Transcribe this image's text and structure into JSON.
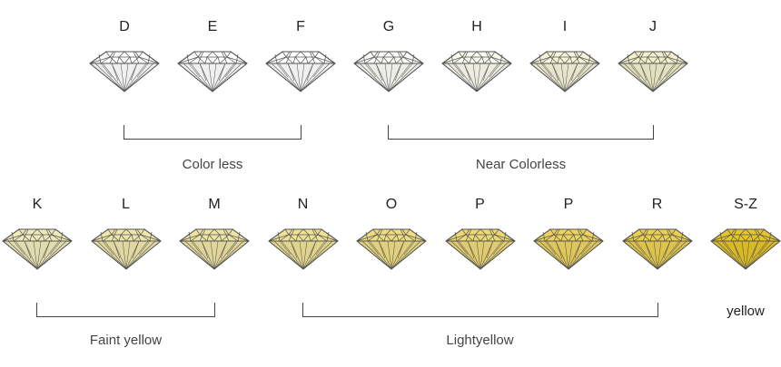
{
  "diamond_scale": {
    "rows": [
      {
        "grades": [
          {
            "label": "D",
            "color": "#ffffff",
            "color_name": "white"
          },
          {
            "label": "E",
            "color": "#ffffff",
            "color_name": "white"
          },
          {
            "label": "F",
            "color": "#ffffff",
            "color_name": "white"
          },
          {
            "label": "G",
            "color": "#fcfcf6",
            "color_name": "near-white"
          },
          {
            "label": "H",
            "color": "#fbfbef",
            "color_name": "near-white"
          },
          {
            "label": "I",
            "color": "#f6f4d9",
            "color_name": "very pale cream"
          },
          {
            "label": "J",
            "color": "#f3f0cc",
            "color_name": "pale cream"
          }
        ],
        "groups": [
          {
            "label": "Color less",
            "from": 0,
            "to": 2
          },
          {
            "label": "Near Colorless",
            "from": 3,
            "to": 6
          }
        ]
      },
      {
        "grades": [
          {
            "label": "K",
            "color": "#f0eab8",
            "color_name": "faint yellow"
          },
          {
            "label": "L",
            "color": "#eee6ab",
            "color_name": "faint yellow"
          },
          {
            "label": "M",
            "color": "#eee4a3",
            "color_name": "faint yellow"
          },
          {
            "label": "N",
            "color": "#efe296",
            "color_name": "light yellow"
          },
          {
            "label": "O",
            "color": "#eedd83",
            "color_name": "light yellow"
          },
          {
            "label": "P",
            "color": "#eed975",
            "color_name": "light yellow"
          },
          {
            "label": "P",
            "color": "#edd35e",
            "color_name": "yellow"
          },
          {
            "label": "R",
            "color": "#ecd050",
            "color_name": "yellow"
          },
          {
            "label": "S-Z",
            "color": "#e6c528",
            "color_name": "deep yellow"
          }
        ],
        "groups": [
          {
            "label": "Faint yellow",
            "from": 0,
            "to": 2
          },
          {
            "label": "Lightyellow",
            "from": 3,
            "to": 7
          }
        ],
        "single_label": {
          "label": "yellow",
          "index": 8
        }
      }
    ],
    "outline_color": "#555555"
  }
}
